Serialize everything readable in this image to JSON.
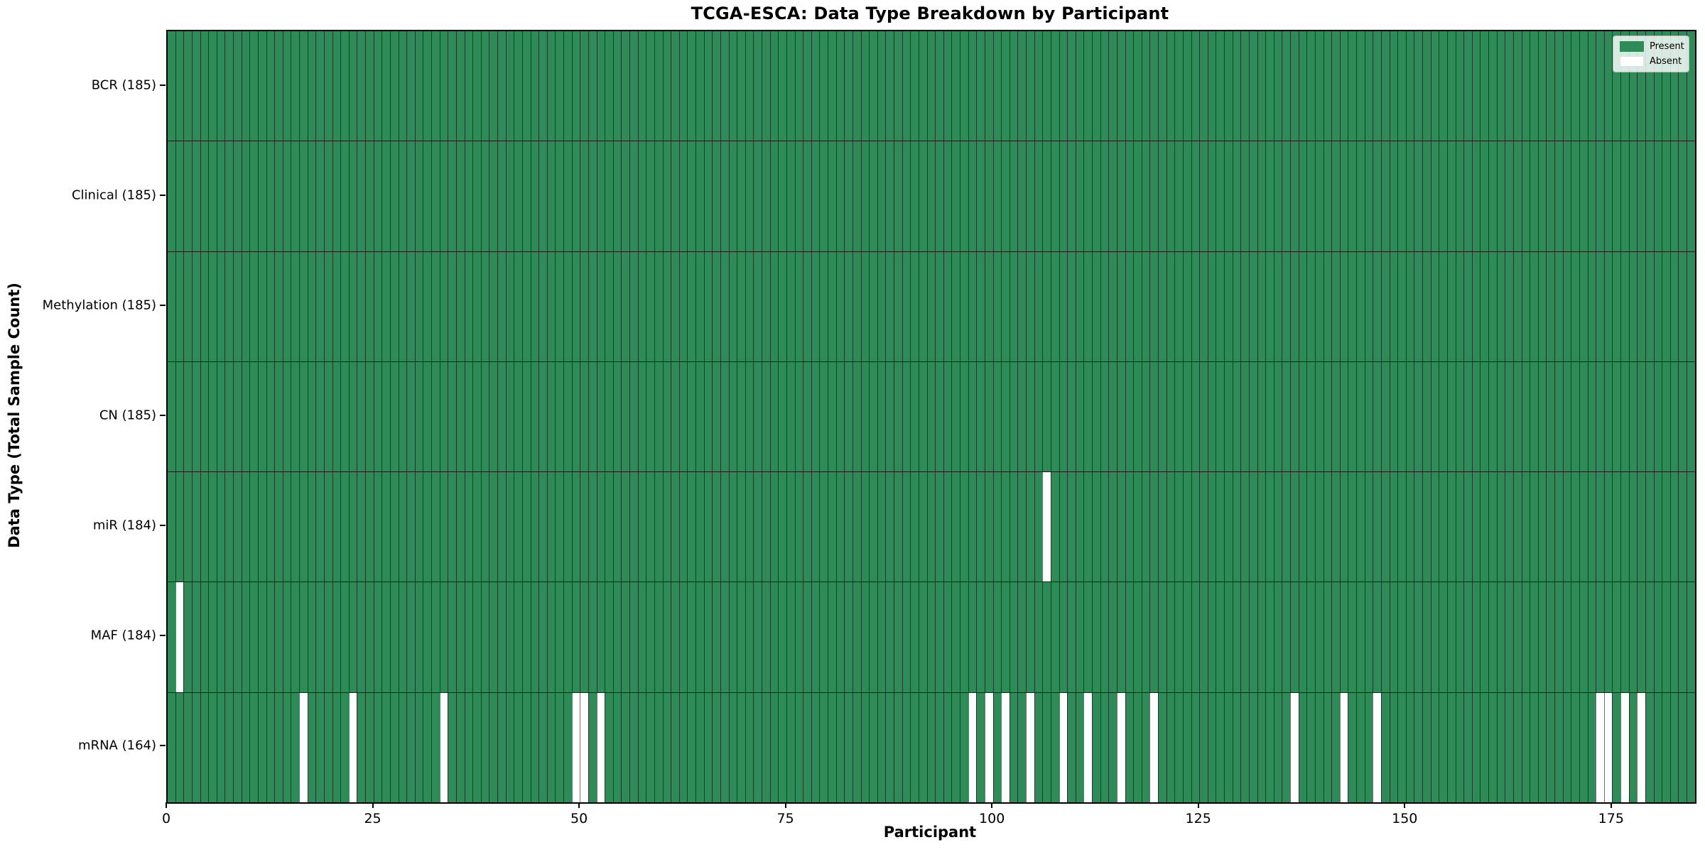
{
  "chart_data": {
    "type": "heatmap",
    "title": "TCGA-ESCA: Data Type Breakdown by Participant",
    "xlabel": "Participant",
    "ylabel": "Data Type (Total Sample Count)",
    "x_range": [
      0,
      185
    ],
    "x_ticks": [
      0,
      25,
      50,
      75,
      100,
      125,
      150,
      175
    ],
    "n_participants": 185,
    "present_color": "#2e8b57",
    "absent_color": "#ffffff",
    "grid_line_color": "rgba(0,0,0,0.55)",
    "legend_position": "upper right",
    "legend_entries": [
      {
        "label": "Present",
        "color": "#2e8b57"
      },
      {
        "label": "Absent",
        "color": "#ffffff"
      }
    ],
    "rows": [
      {
        "label": "BCR (185)",
        "data_type": "BCR",
        "present_count": 185,
        "absent_participants": []
      },
      {
        "label": "Clinical (185)",
        "data_type": "Clinical",
        "present_count": 185,
        "absent_participants": []
      },
      {
        "label": "Methylation (185)",
        "data_type": "Methylation",
        "present_count": 185,
        "absent_participants": []
      },
      {
        "label": "CN (185)",
        "data_type": "CN",
        "present_count": 185,
        "absent_participants": []
      },
      {
        "label": "miR (184)",
        "data_type": "miR",
        "present_count": 184,
        "absent_participants": [
          106
        ]
      },
      {
        "label": "MAF (184)",
        "data_type": "MAF",
        "present_count": 184,
        "absent_participants": [
          1
        ]
      },
      {
        "label": "mRNA (164)",
        "data_type": "mRNA",
        "present_count": 164,
        "absent_participants": [
          16,
          22,
          33,
          49,
          50,
          52,
          97,
          99,
          101,
          104,
          108,
          111,
          115,
          119,
          136,
          142,
          146,
          173,
          174,
          176,
          178
        ]
      }
    ]
  }
}
